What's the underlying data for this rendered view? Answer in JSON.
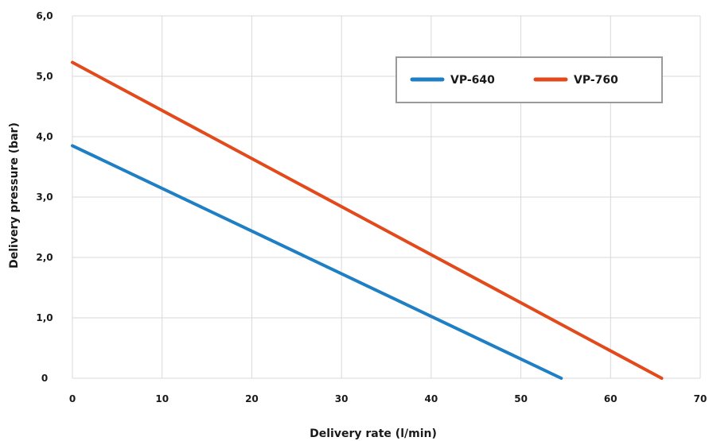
{
  "chart_data": {
    "type": "line",
    "xlabel": "Delivery rate (l/min)",
    "ylabel": "Delivery pressure (bar)",
    "xlim": [
      0,
      70
    ],
    "ylim": [
      0,
      6
    ],
    "x_ticks": [
      0,
      10,
      20,
      30,
      40,
      50,
      60,
      70
    ],
    "x_tick_labels": [
      "0",
      "10",
      "20",
      "30",
      "40",
      "50",
      "60",
      "70"
    ],
    "y_ticks": [
      0,
      1,
      2,
      3,
      4,
      5,
      6
    ],
    "y_tick_labels": [
      "0",
      "1,0",
      "2,0",
      "3,0",
      "4,0",
      "5,0",
      "6,0"
    ],
    "grid": true,
    "legend_position": "top-right",
    "series": [
      {
        "name": "VP-640",
        "color": "#1f7fc4",
        "x": [
          0,
          54.5
        ],
        "y": [
          3.85,
          0
        ]
      },
      {
        "name": "VP-760",
        "color": "#e24a1c",
        "x": [
          0,
          65.7
        ],
        "y": [
          5.23,
          0
        ]
      }
    ]
  }
}
